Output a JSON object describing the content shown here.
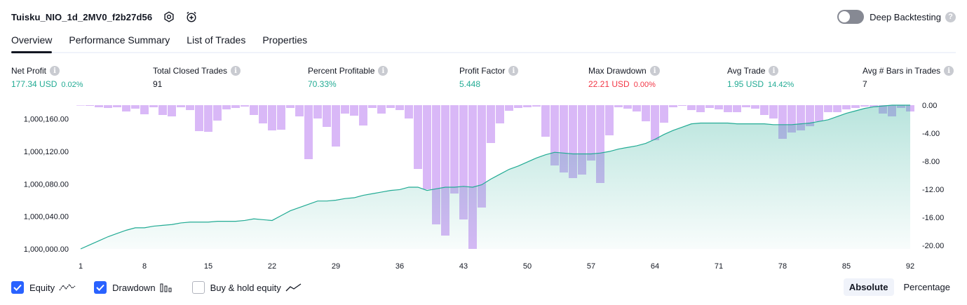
{
  "header": {
    "strategy_name": "Tuisku_NIO_1d_2MV0_f2b27d56",
    "settings_icon": "settings-icon",
    "alert_icon": "add-alert-icon",
    "deep_backtesting_label": "Deep Backtesting",
    "deep_backtesting_enabled": false,
    "help_icon_glyph": "?"
  },
  "tabs": [
    {
      "label": "Overview",
      "active": true
    },
    {
      "label": "Performance Summary",
      "active": false
    },
    {
      "label": "List of Trades",
      "active": false
    },
    {
      "label": "Properties",
      "active": false
    }
  ],
  "metrics": {
    "net_profit": {
      "label": "Net Profit",
      "value": "177.34 USD",
      "pct": "0.02%"
    },
    "total_closed_trades": {
      "label": "Total Closed Trades",
      "value": "91"
    },
    "percent_profitable": {
      "label": "Percent Profitable",
      "value": "70.33%"
    },
    "profit_factor": {
      "label": "Profit Factor",
      "value": "5.448"
    },
    "max_drawdown": {
      "label": "Max Drawdown",
      "value": "22.21 USD",
      "pct": "0.00%"
    },
    "avg_trade": {
      "label": "Avg Trade",
      "value": "1.95 USD",
      "pct": "14.42%"
    },
    "avg_bars": {
      "label": "Avg # Bars in Trades",
      "value": "7"
    }
  },
  "info_glyph": "i",
  "colors": {
    "positive": "#22ab94",
    "negative": "#f23645",
    "equity_line": "#22ab94",
    "drawdown_bar": "#d9b8f7",
    "checkbox_accent": "#2962ff"
  },
  "chart_data": {
    "type": "area",
    "x_ticks": [
      "1",
      "8",
      "15",
      "22",
      "29",
      "36",
      "43",
      "50",
      "57",
      "64",
      "71",
      "78",
      "85",
      "92"
    ],
    "left_axis": {
      "ticks": [
        "1,000,000.00",
        "1,000,040.00",
        "1,000,080.00",
        "1,000,120.00",
        "1,000,160.00"
      ],
      "range": [
        1000000,
        1000177
      ]
    },
    "right_axis": {
      "ticks": [
        "0.00",
        "-4.00",
        "-8.00",
        "-12.00",
        "-16.00",
        "-20.00"
      ],
      "range": [
        -20.5,
        0
      ]
    },
    "series": [
      {
        "name": "Equity",
        "values": [
          0,
          5,
          10,
          15,
          19,
          23,
          26,
          26,
          28,
          29,
          30,
          32,
          33,
          33,
          33,
          34,
          34,
          34,
          35,
          37,
          36,
          35,
          41,
          47,
          51,
          55,
          59,
          59,
          60,
          62,
          63,
          66,
          68,
          70,
          72,
          73,
          76,
          76,
          72,
          74,
          76,
          76,
          77,
          76,
          79,
          86,
          92,
          98,
          102,
          107,
          112,
          116,
          119,
          118,
          117,
          117,
          117,
          118,
          120,
          123,
          125,
          127,
          130,
          135,
          141,
          146,
          150,
          154,
          155,
          155,
          155,
          155,
          154,
          154,
          154,
          154,
          153,
          153,
          153,
          154,
          155,
          157,
          159,
          163,
          167,
          170,
          173,
          175,
          176,
          177,
          177,
          177
        ]
      },
      {
        "name": "Drawdown",
        "values": [
          -0.05,
          -0.1,
          -0.3,
          -0.4,
          -0.3,
          -0.9,
          -0.5,
          -1.3,
          -0.3,
          -1.4,
          -1.6,
          -0.3,
          -0.7,
          -3.7,
          -3.8,
          -2.2,
          -0.6,
          -0.4,
          -0.2,
          -1.4,
          -2.6,
          -3.6,
          -3.5,
          -0.4,
          -1.6,
          -7.7,
          -1.9,
          -3.1,
          -5.9,
          -1.2,
          -1.5,
          -2.9,
          -0.4,
          -1.2,
          -0.4,
          -0.7,
          -1.9,
          -9.1,
          -12.0,
          -17.0,
          -18.6,
          -12.6,
          -16.3,
          -20.5,
          -14.6,
          -5.4,
          -2.6,
          -0.8,
          -0.4,
          -0.3,
          -0.2,
          -4.5,
          -8.6,
          -9.6,
          -10.4,
          -9.9,
          -7.9,
          -11.1,
          -4.3,
          -0.3,
          -0.5,
          -0.9,
          -2.3,
          -5.0,
          -2.5,
          -0.3,
          -0.1,
          -0.7,
          -1.0,
          -0.4,
          -0.6,
          -1.0,
          -1.0,
          -0.3,
          -0.5,
          -1.4,
          -1.9,
          -4.8,
          -3.9,
          -3.6,
          -3.0,
          -2.3,
          -1.0,
          -1.0,
          -0.6,
          -0.4,
          -0.2,
          -0.3,
          -1.2,
          -1.6,
          -0.4,
          -0.9
        ]
      }
    ],
    "legend_placement": "bottom-left"
  },
  "legend": {
    "equity_label": "Equity",
    "drawdown_label": "Drawdown",
    "buyhold_label": "Buy & hold equity",
    "equity_icon": "equity-line-icon",
    "drawdown_icon": "drawdown-bars-icon",
    "buyhold_icon": "buyhold-line-icon"
  },
  "modes": {
    "absolute_label": "Absolute",
    "percentage_label": "Percentage"
  }
}
